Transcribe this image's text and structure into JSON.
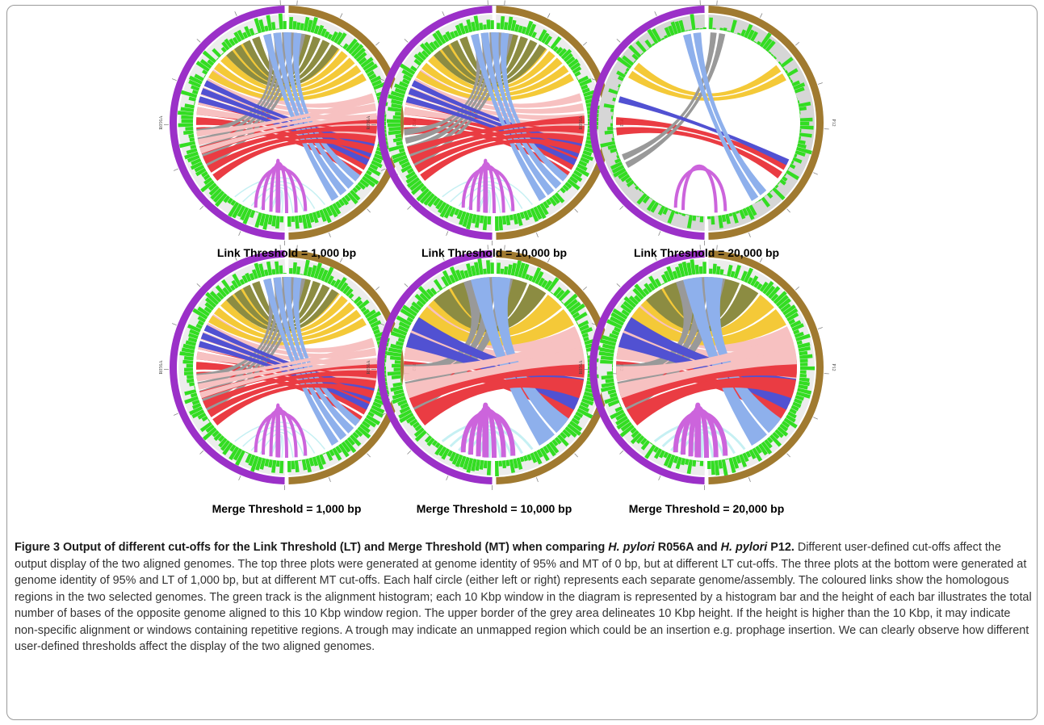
{
  "panels": [
    {
      "id": "p1",
      "threshold_label": "Link Threshold = 1,000 bp",
      "variant": "full"
    },
    {
      "id": "p2",
      "threshold_label": "Link Threshold = 10,000 bp",
      "variant": "mid"
    },
    {
      "id": "p3",
      "threshold_label": "Link Threshold = 20,000 bp",
      "variant": "sparse"
    },
    {
      "id": "p4",
      "threshold_label": "Merge Threshold = 1,000 bp",
      "variant": "full"
    },
    {
      "id": "p5",
      "threshold_label": "Merge Threshold = 10,000 bp",
      "variant": "merged"
    },
    {
      "id": "p6",
      "threshold_label": "Merge Threshold = 20,000 bp",
      "variant": "merged"
    }
  ],
  "genome_labels": {
    "left": "R056A",
    "right": "P12"
  },
  "colors": {
    "left_genome": "#9b30c8",
    "right_genome": "#a07a30",
    "histogram": "#33dd22",
    "grey_track": "#d6d6d6",
    "links": [
      "#e8222a",
      "#f6b9b9",
      "#f3c21d",
      "#7d7d28",
      "#8c8c8c",
      "#3a3acc",
      "#7fa6ea",
      "#c64fd8",
      "#bfeff2"
    ]
  },
  "caption": {
    "title_parts": [
      {
        "text": "Figure 3 Output of different cut-offs for the Link Threshold (LT) and Merge Threshold (MT) when comparing ",
        "italic": false
      },
      {
        "text": "H. pylori",
        "italic": true
      },
      {
        "text": " R056A and ",
        "italic": false
      },
      {
        "text": "H. pylori",
        "italic": true
      },
      {
        "text": " P12.",
        "italic": false
      }
    ],
    "body": " Different user-defined cut-offs affect the output display of the two aligned genomes. The top three plots were generated at genome identity of 95% and MT of 0 bp, but at different LT cut-offs. The three plots at the bottom were generated at genome identity of 95% and LT of 1,000 bp, but at different MT cut-offs. Each half circle (either left or right) represents each separate genome/assembly. The coloured links show the homologous regions in the two selected genomes. The green track is the alignment histogram; each 10 Kbp window in the diagram is represented by a histogram bar and the height of each bar illustrates the total number of bases of the opposite genome aligned to this 10 Kbp window region. The upper border of the grey area delineates 10 Kbp height. If the height is higher than the 10 Kbp, it may indicate non-specific alignment or windows containing repetitive regions. A trough may indicate an unmapped region which could be an insertion e.g. prophage insertion. We can clearly observe how different user-defined thresholds affect the display of the two aligned genomes."
  }
}
